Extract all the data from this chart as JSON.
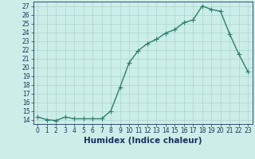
{
  "x": [
    0,
    1,
    2,
    3,
    4,
    5,
    6,
    7,
    8,
    9,
    10,
    11,
    12,
    13,
    14,
    15,
    16,
    17,
    18,
    19,
    20,
    21,
    22,
    23
  ],
  "y": [
    14.3,
    14.0,
    13.9,
    14.3,
    14.1,
    14.1,
    14.1,
    14.1,
    15.0,
    17.7,
    20.5,
    21.9,
    22.7,
    23.2,
    23.9,
    24.3,
    25.1,
    25.4,
    27.0,
    26.6,
    26.4,
    23.8,
    21.5,
    19.5
  ],
  "line_color": "#2e7d6e",
  "marker": "+",
  "marker_size": 4,
  "linewidth": 1.0,
  "bg_color": "#cceee8",
  "grid_color": "#aad4ce",
  "xlabel": "Humidex (Indice chaleur)",
  "xlim": [
    -0.5,
    23.5
  ],
  "ylim": [
    13.5,
    27.5
  ],
  "yticks": [
    14,
    15,
    16,
    17,
    18,
    19,
    20,
    21,
    22,
    23,
    24,
    25,
    26,
    27
  ],
  "xticks": [
    0,
    1,
    2,
    3,
    4,
    5,
    6,
    7,
    8,
    9,
    10,
    11,
    12,
    13,
    14,
    15,
    16,
    17,
    18,
    19,
    20,
    21,
    22,
    23
  ],
  "tick_fontsize": 5.5,
  "xlabel_fontsize": 7.5,
  "axis_text_color": "#1a3060"
}
